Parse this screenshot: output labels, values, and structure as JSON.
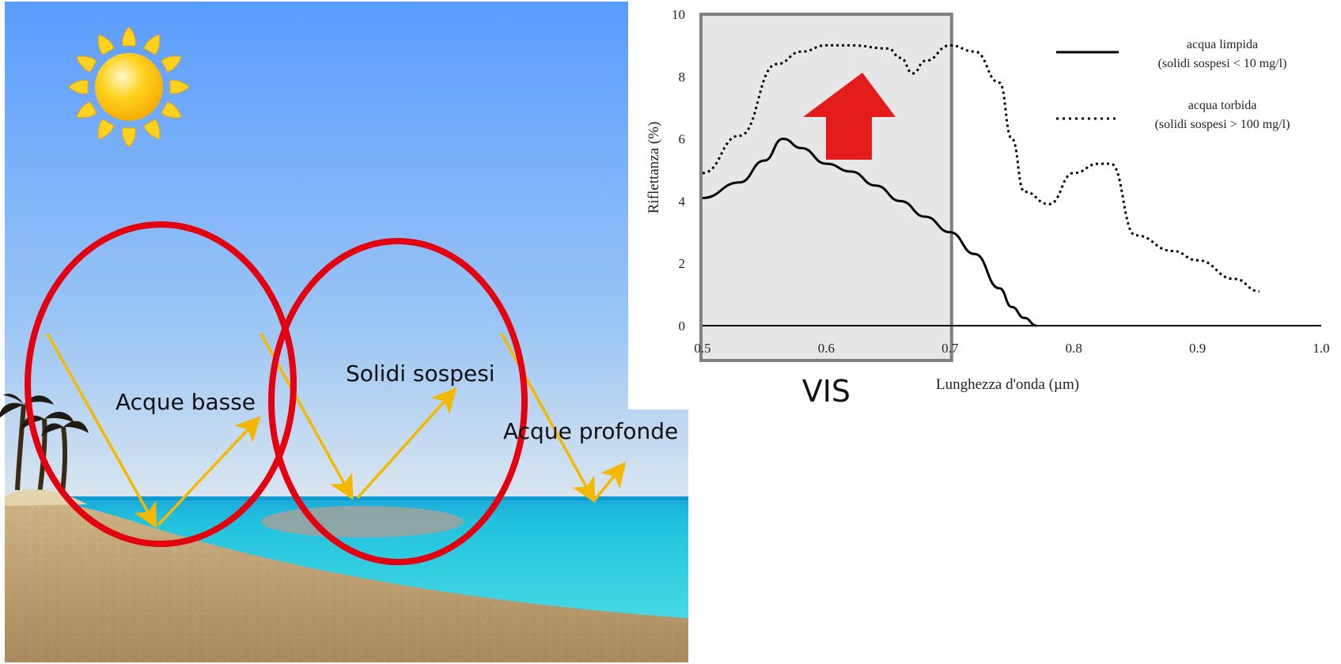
{
  "scene": {
    "labels": {
      "shallow": "Acque basse",
      "suspended": "Solidi sospesi",
      "deep": "Acque profonde"
    },
    "icons": {
      "sun": "sun-icon",
      "palms": "palm-trees-icon",
      "up_arrow": "up-arrow-icon"
    },
    "colors": {
      "sky_top": "#5a9cff",
      "sky_bottom": "#cfe0f2",
      "sea": "#2fd3dc",
      "sand": "#b89a6b",
      "ray": "#f5b800",
      "circle": "#e5000f",
      "sediment": "#9aa3a0",
      "up_arrow": "#e41b1b"
    }
  },
  "chart_data": {
    "type": "line",
    "xlabel": "Lunghezza d'onda (µm)",
    "ylabel": "Riflettanza (%)",
    "xlim": [
      0.5,
      1.0
    ],
    "ylim": [
      0,
      10
    ],
    "xticks": [
      "0.5",
      "0.6",
      "0.7",
      "0.8",
      "0.9",
      "1.0"
    ],
    "yticks": [
      "0",
      "2",
      "4",
      "6",
      "8",
      "10"
    ],
    "highlight": {
      "label": "VIS",
      "x_range": [
        0.5,
        0.7
      ]
    },
    "legend": {
      "position": "top-right"
    },
    "series": [
      {
        "name": "acqua limpida",
        "legend_sub": "(solidi sospesi < 10 mg/l)",
        "style": "solid",
        "x": [
          0.5,
          0.53,
          0.55,
          0.565,
          0.58,
          0.6,
          0.62,
          0.64,
          0.66,
          0.68,
          0.7,
          0.72,
          0.74,
          0.75,
          0.76,
          0.77
        ],
        "y": [
          4.1,
          4.6,
          5.3,
          6.0,
          5.7,
          5.2,
          4.95,
          4.5,
          4.0,
          3.5,
          3.0,
          2.3,
          1.2,
          0.6,
          0.25,
          0.0
        ]
      },
      {
        "name": "acqua torbida",
        "legend_sub": "(solidi sospesi > 100 mg/l)",
        "style": "dotted",
        "x": [
          0.5,
          0.53,
          0.56,
          0.58,
          0.6,
          0.62,
          0.65,
          0.66,
          0.67,
          0.68,
          0.7,
          0.72,
          0.74,
          0.75,
          0.76,
          0.78,
          0.8,
          0.82,
          0.83,
          0.85,
          0.88,
          0.9,
          0.93,
          0.95
        ],
        "y": [
          4.9,
          6.1,
          8.4,
          8.8,
          9.0,
          9.0,
          8.9,
          8.6,
          8.1,
          8.5,
          9.0,
          8.8,
          7.8,
          6.0,
          4.3,
          3.9,
          4.9,
          5.2,
          5.2,
          2.9,
          2.4,
          2.1,
          1.5,
          1.1
        ]
      }
    ]
  }
}
